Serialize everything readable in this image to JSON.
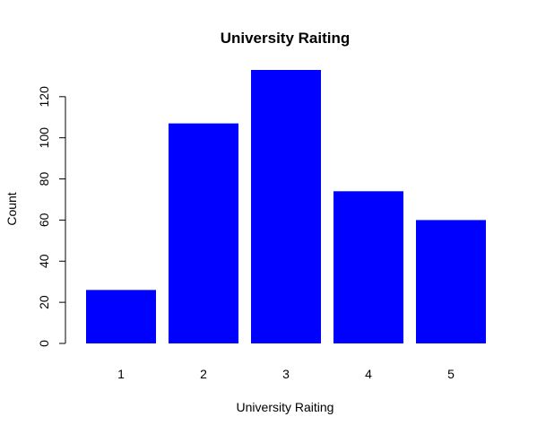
{
  "chart_data": {
    "type": "bar",
    "title": "University Raiting",
    "xlabel": "University Raiting",
    "ylabel": "Count",
    "categories": [
      "1",
      "2",
      "3",
      "4",
      "5"
    ],
    "values": [
      26,
      107,
      133,
      74,
      60
    ],
    "ylim": [
      0,
      133
    ],
    "yticks": [
      0,
      20,
      40,
      60,
      80,
      100,
      120
    ],
    "bar_color": "#0000ff",
    "grid": false,
    "legend": "none"
  }
}
